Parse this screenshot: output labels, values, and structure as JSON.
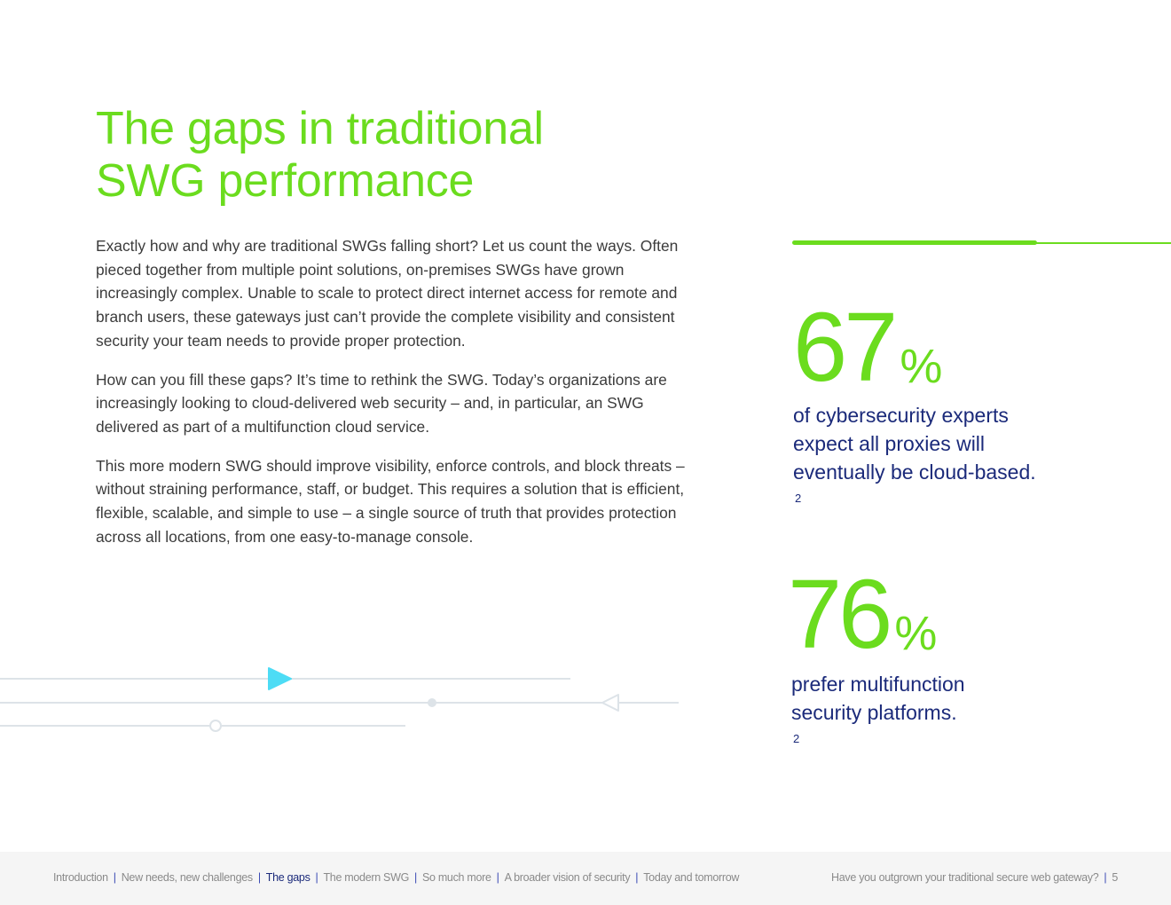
{
  "title": {
    "line1": "The gaps in traditional",
    "line2": "SWG performance"
  },
  "body": {
    "paragraphs": [
      "Exactly how and why are traditional SWGs falling short? Let us count the ways. Often pieced together from multiple point solutions, on-premises SWGs have grown increasingly complex. Unable to scale to protect direct internet access for remote and branch users, these gateways just can’t provide the complete visibility and consistent security your team needs to provide proper protection.",
      "How can you fill these gaps? It’s time to rethink the SWG. Today’s organizations are increasingly looking to cloud-delivered web security – and, in particular, an SWG delivered as part of a multifunction cloud service.",
      "This more modern SWG should improve visibility, enforce controls, and block threats – without straining performance, staff, or budget. This requires a solution that is efficient, flexible, scalable, and simple to use – a single source of truth that provides protection across all locations, from one easy-to-manage console."
    ]
  },
  "stats": [
    {
      "value": "67",
      "unit": "%",
      "lines": [
        "of cybersecurity experts",
        "expect all proxies will",
        "eventually be cloud-based."
      ],
      "footnote": "2"
    },
    {
      "value": "76",
      "unit": "%",
      "lines": [
        "prefer multifunction",
        "security platforms."
      ],
      "footnote": "2"
    }
  ],
  "footer": {
    "nav": [
      "Introduction",
      "New needs, new challenges",
      "The gaps",
      "The modern SWG",
      "So much more",
      "A broader vision of security",
      "Today and tomorrow"
    ],
    "active_index": 2,
    "doc_title": "Have you outgrown your traditional secure web gateway?",
    "page_number": "5"
  },
  "colors": {
    "accent_green": "#6bdc1e",
    "navy": "#1b2a7a",
    "body_text": "#3b3b3b",
    "deco_cyan": "#4ddcf5",
    "deco_line": "#dde3e8"
  }
}
